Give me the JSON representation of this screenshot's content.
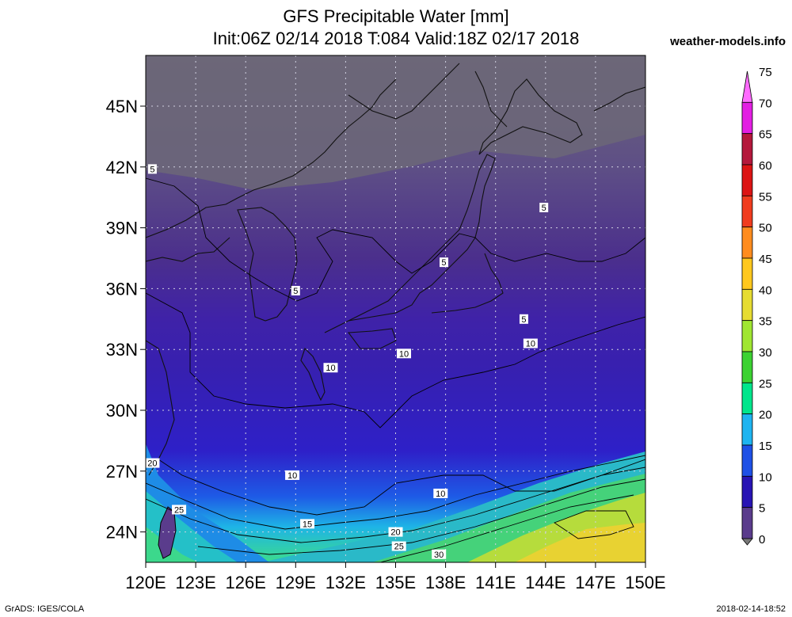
{
  "header": {
    "title": "GFS Precipitable Water [mm]",
    "subtitle": "Init:06Z 02/14 2018 T:084 Valid:18Z 02/17 2018",
    "site": "weather-models.info"
  },
  "footer": {
    "left": "GrADS: IGES/COLA",
    "right": "2018-02-14-18:52"
  },
  "map": {
    "lat_labels": [
      "45N",
      "42N",
      "39N",
      "36N",
      "33N",
      "30N",
      "27N",
      "24N"
    ],
    "lon_labels": [
      "120E",
      "123E",
      "126E",
      "129E",
      "132E",
      "135E",
      "138E",
      "141E",
      "144E",
      "147E",
      "150E"
    ],
    "lat_values": [
      45,
      42,
      39,
      36,
      33,
      30,
      27,
      24
    ],
    "lon_values": [
      120,
      123,
      126,
      129,
      132,
      135,
      138,
      141,
      144,
      147,
      150
    ],
    "contour_labels": [
      {
        "text": "5",
        "lon": 120.4,
        "lat": 41.9
      },
      {
        "text": "5",
        "lon": 129.0,
        "lat": 35.9
      },
      {
        "text": "5",
        "lon": 137.9,
        "lat": 37.3
      },
      {
        "text": "5",
        "lon": 143.9,
        "lat": 40.0
      },
      {
        "text": "5",
        "lon": 142.7,
        "lat": 34.5
      },
      {
        "text": "10",
        "lon": 131.1,
        "lat": 32.1
      },
      {
        "text": "10",
        "lon": 135.5,
        "lat": 32.8
      },
      {
        "text": "10",
        "lon": 143.1,
        "lat": 33.3
      },
      {
        "text": "10",
        "lon": 128.8,
        "lat": 26.8
      },
      {
        "text": "10",
        "lon": 137.7,
        "lat": 25.9
      },
      {
        "text": "15",
        "lon": 129.7,
        "lat": 24.4
      },
      {
        "text": "20",
        "lon": 120.4,
        "lat": 27.4
      },
      {
        "text": "20",
        "lon": 135.0,
        "lat": 24.0
      },
      {
        "text": "25",
        "lon": 122.0,
        "lat": 25.1
      },
      {
        "text": "25",
        "lon": 135.2,
        "lat": 23.3
      },
      {
        "text": "30",
        "lon": 137.6,
        "lat": 22.9
      }
    ]
  },
  "colorbar": {
    "labels": [
      "75",
      "70",
      "65",
      "60",
      "55",
      "50",
      "45",
      "40",
      "35",
      "30",
      "25",
      "20",
      "15",
      "10",
      "5",
      "0"
    ],
    "colors": [
      "#ff6bff",
      "#e31ee3",
      "#b4183c",
      "#dc1414",
      "#f03c1e",
      "#ff8c1e",
      "#ffc81e",
      "#e6dc32",
      "#a0e632",
      "#3cd232",
      "#00e68c",
      "#1eb4f0",
      "#1e50e6",
      "#2814b4",
      "#5a3c8c",
      "#787878"
    ]
  }
}
